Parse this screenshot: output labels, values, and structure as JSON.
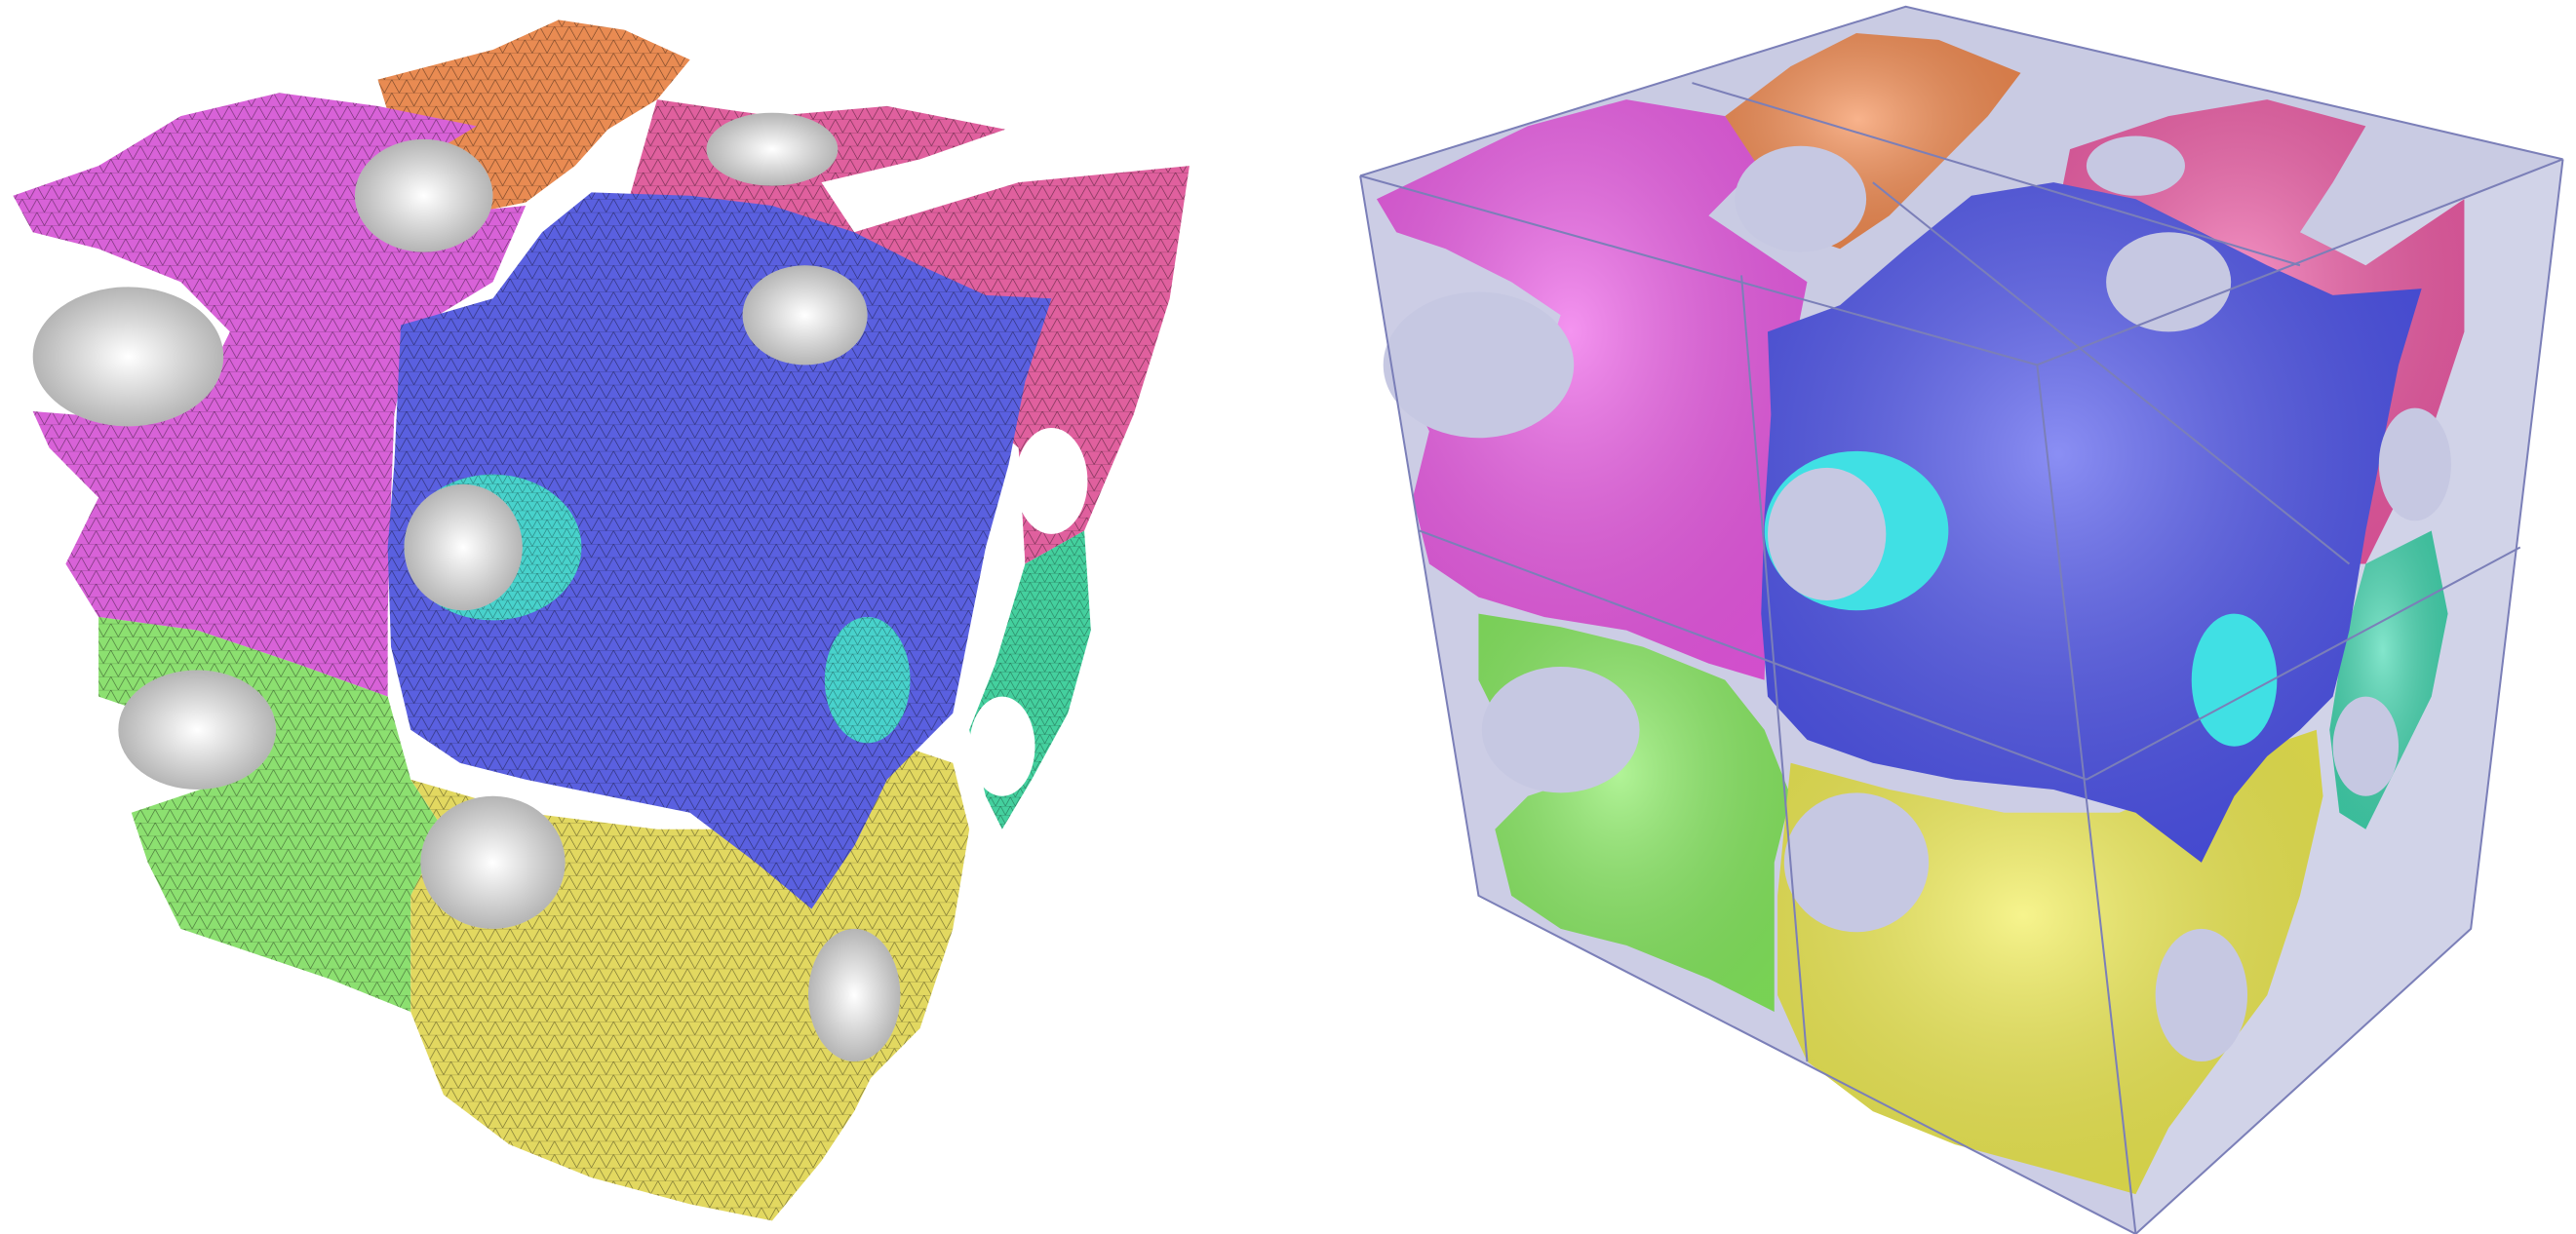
{
  "figure": {
    "panels": [
      {
        "id": "left",
        "render_style": "wireframe-mesh",
        "background": "#ffffff",
        "regions": [
          {
            "name": "orange",
            "color": "#e98b52"
          },
          {
            "name": "magenta",
            "color": "#d862d8"
          },
          {
            "name": "pink",
            "color": "#e0609e"
          },
          {
            "name": "blue",
            "color": "#5a60e0"
          },
          {
            "name": "cyan",
            "color": "#48d2cc"
          },
          {
            "name": "teal",
            "color": "#44d09e"
          },
          {
            "name": "green",
            "color": "#8ce070"
          },
          {
            "name": "yellow",
            "color": "#e2d860"
          }
        ]
      },
      {
        "id": "right",
        "render_style": "shaded-in-bounding-box",
        "box_fill": "#c6c8e2",
        "box_edge": "#7b7fb8",
        "regions": [
          {
            "name": "orange",
            "color": "#f58a4e"
          },
          {
            "name": "magenta",
            "color": "#ee5ae8"
          },
          {
            "name": "pink",
            "color": "#f05aa6"
          },
          {
            "name": "blue",
            "color": "#4c52ee"
          },
          {
            "name": "cyan",
            "color": "#40e0e4"
          },
          {
            "name": "teal",
            "color": "#40d8b0"
          },
          {
            "name": "green",
            "color": "#88ee60"
          },
          {
            "name": "yellow",
            "color": "#f2ee50"
          }
        ]
      }
    ]
  }
}
